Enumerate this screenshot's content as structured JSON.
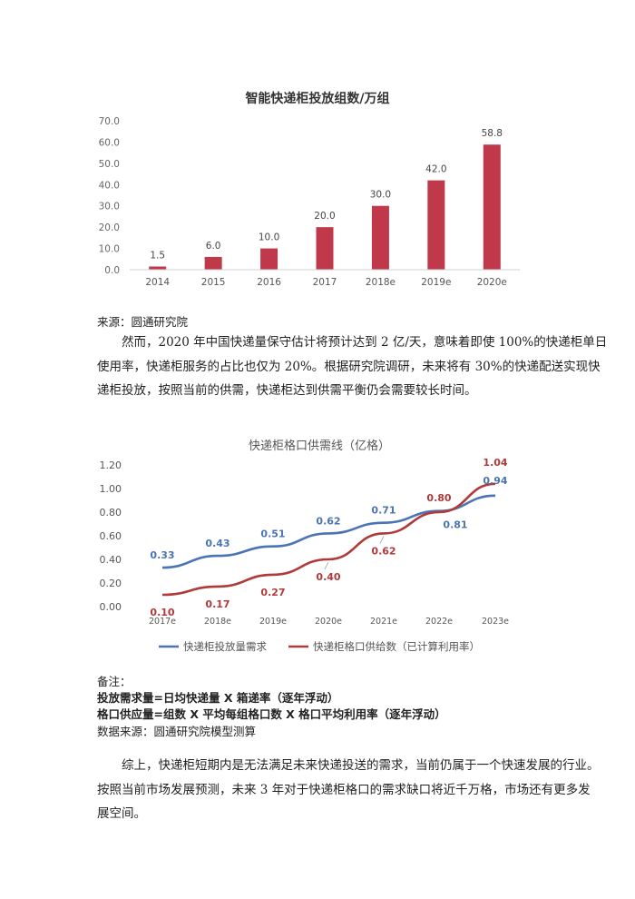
{
  "chart_data": [
    {
      "type": "bar",
      "title": "智能快递柜投放组数/万组",
      "categories": [
        "2014",
        "2015",
        "2016",
        "2017",
        "2018e",
        "2019e",
        "2020e"
      ],
      "values": [
        1.5,
        6.0,
        10.0,
        20.0,
        30.0,
        42.0,
        58.8
      ],
      "value_labels": [
        "1.5",
        "6.0",
        "10.0",
        "20.0",
        "30.0",
        "42.0",
        "58.8"
      ],
      "yticks": [
        "0.0",
        "10.0",
        "20.0",
        "30.0",
        "40.0",
        "50.0",
        "60.0",
        "70.0"
      ],
      "ylim": [
        0,
        70
      ],
      "color": "#c0394b",
      "grid": false
    },
    {
      "type": "line",
      "title": "快递柜格口供需线（亿格）",
      "categories": [
        "2017e",
        "2018e",
        "2019e",
        "2020e",
        "2021e",
        "2022e",
        "2023e"
      ],
      "yticks": [
        "0.00",
        "0.20",
        "0.40",
        "0.60",
        "0.80",
        "1.00",
        "1.20"
      ],
      "ylim": [
        0,
        1.2
      ],
      "legend_position": "bottom",
      "series": [
        {
          "name": "快递柜投放量需求",
          "color": "#4a74b4",
          "values": [
            0.33,
            0.43,
            0.51,
            0.62,
            0.71,
            0.81,
            0.94
          ],
          "labels": [
            "0.33",
            "0.43",
            "0.51",
            "0.62",
            "0.71",
            "0.81",
            "0.94"
          ]
        },
        {
          "name": "快递柜格口供给数（已计算利用率）",
          "color": "#b03a3a",
          "values": [
            0.1,
            0.17,
            0.27,
            0.4,
            0.62,
            0.8,
            1.04
          ],
          "labels": [
            "0.10",
            "0.17",
            "0.27",
            "0.40",
            "0.62",
            "0.80",
            "1.04"
          ]
        }
      ]
    }
  ],
  "source1": "来源：圆通研究院",
  "paragraph1": [
    "然而，2020 年中国快递量保守估计将预计达到 2 亿/天，意味着即使 100%的快递柜单日",
    "使用率，快递柜服务的占比也仅为 20%。根据研究院调研，未来将有 30%的快递配送实现快",
    "递柜投放，按照当前的供需，快递柜达到供需平衡仍会需要较长时间。"
  ],
  "notes": {
    "heading": "备注：",
    "formula1": "投放需求量=日均快递量 X 箱递率（逐年浮动）",
    "formula2": "格口供应量=组数 X 平均每组格口数 X 格口平均利用率（逐年浮动）",
    "source": "数据来源：圆通研究院模型测算"
  },
  "paragraph2": [
    "综上，快递柜短期内是无法满足未来快递投送的需求，当前仍属于一个快速发展的行业。",
    "按照当前市场发展预测，未来 3 年对于快递柜格口的需求缺口将近千万格，市场还有更多发",
    "展空间。"
  ]
}
